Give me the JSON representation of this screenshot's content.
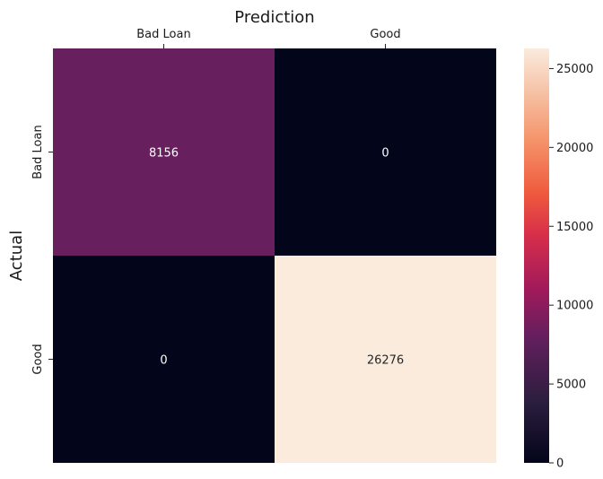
{
  "chart_data": {
    "type": "heatmap",
    "title": "Prediction",
    "xlabel": "Prediction",
    "ylabel": "Actual",
    "x_categories": [
      "Bad Loan",
      "Good"
    ],
    "y_categories": [
      "Bad Loan",
      "Good"
    ],
    "matrix": [
      [
        8156,
        0
      ],
      [
        0,
        26276
      ]
    ],
    "cell_labels": [
      [
        "8156",
        "0"
      ],
      [
        "0",
        "26276"
      ]
    ],
    "colorbar": {
      "min": 0,
      "max": 26276,
      "ticks": [
        0,
        5000,
        10000,
        15000,
        20000,
        25000
      ],
      "tick_labels": [
        "0",
        "5000",
        "10000",
        "15000",
        "20000",
        "25000"
      ]
    },
    "colormap": "rocket",
    "grid": false
  }
}
